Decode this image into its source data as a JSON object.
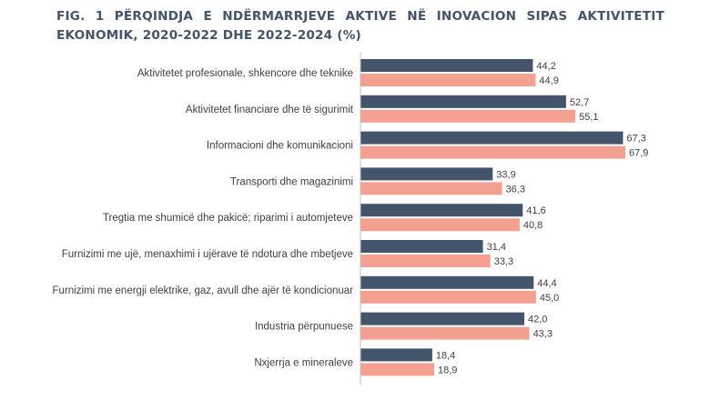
{
  "title": "FIG. 1 PËRQINDJA E NDËRMARRJEVE AKTIVE NË INOVACION SIPAS AKTIVITETIT EKONOMIK, 2020-2022 DHE 2022-2024 (%)",
  "colors": {
    "series1": "#44546a",
    "series2": "#f4a090",
    "axis": "#bfbfbf",
    "title": "#44546a"
  },
  "chart_data": {
    "type": "bar",
    "orientation": "horizontal",
    "title": "FIG. 1 PËRQINDJA E NDËRMARRJEVE AKTIVE NË INOVACION SIPAS AKTIVITETIT EKONOMIK, 2020-2022 DHE 2022-2024 (%)",
    "categories": [
      "Aktivitetet profesionale, shkencore dhe teknike",
      "Aktivitetet financiare dhe të sigurimit",
      "Informacioni dhe komunikacioni",
      "Transporti dhe magazinimi",
      "Tregtia me shumicë dhe pakicë; riparimi i automjeteve",
      "Furnizimi me ujë, menaxhimi i ujërave të ndotura dhe mbetjeve",
      "Furnizimi me energji elektrike, gaz, avull dhe ajër të kondicionuar",
      "Industria përpunuese",
      "Nxjerrja e mineraleve"
    ],
    "series": [
      {
        "values": [
          44.2,
          52.7,
          67.3,
          33.9,
          41.6,
          31.4,
          44.4,
          42.0,
          18.4
        ],
        "labels": [
          "44,2",
          "52,7",
          "67,3",
          "33,9",
          "41,6",
          "31,4",
          "44,4",
          "42,0",
          "18,4"
        ]
      },
      {
        "values": [
          44.9,
          55.1,
          67.9,
          36.3,
          40.8,
          33.3,
          45.0,
          43.3,
          18.9
        ],
        "labels": [
          "44,9",
          "55,1",
          "67,9",
          "36,3",
          "40,8",
          "33,3",
          "45,0",
          "43,3",
          "18,9"
        ]
      }
    ],
    "xlim": [
      0,
      70
    ],
    "grid": false,
    "legend": "none"
  }
}
